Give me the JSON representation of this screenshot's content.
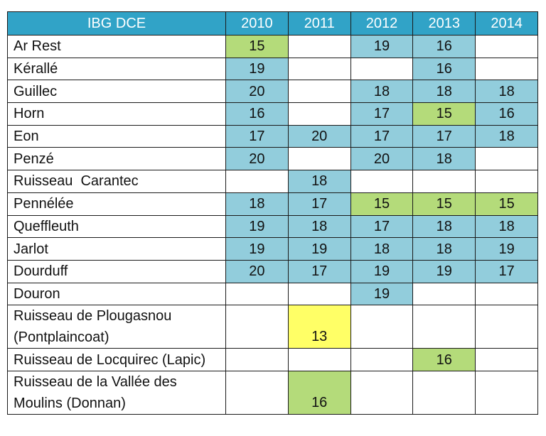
{
  "colors": {
    "header": "#31a3c7",
    "blue": "#92cddc",
    "green": "#b4db7a",
    "yellow": "#ffff66"
  },
  "table": {
    "header": [
      "IBG DCE",
      "2010",
      "2011",
      "2012",
      "2013",
      "2014"
    ],
    "rows": [
      {
        "name": "Ar Rest",
        "cells": [
          {
            "v": "15",
            "c": "green"
          },
          {
            "v": "",
            "c": "white"
          },
          {
            "v": "19",
            "c": "blue"
          },
          {
            "v": "16",
            "c": "blue"
          },
          {
            "v": "",
            "c": "white"
          }
        ]
      },
      {
        "name": "Kérallé",
        "cells": [
          {
            "v": "19",
            "c": "blue"
          },
          {
            "v": "",
            "c": "white"
          },
          {
            "v": "",
            "c": "white"
          },
          {
            "v": "16",
            "c": "blue"
          },
          {
            "v": "",
            "c": "white"
          }
        ]
      },
      {
        "name": "Guillec",
        "cells": [
          {
            "v": "20",
            "c": "blue"
          },
          {
            "v": "",
            "c": "white"
          },
          {
            "v": "18",
            "c": "blue"
          },
          {
            "v": "18",
            "c": "blue"
          },
          {
            "v": "18",
            "c": "blue"
          }
        ]
      },
      {
        "name": "Horn",
        "cells": [
          {
            "v": "16",
            "c": "blue"
          },
          {
            "v": "",
            "c": "white"
          },
          {
            "v": "17",
            "c": "blue"
          },
          {
            "v": "15",
            "c": "green"
          },
          {
            "v": "16",
            "c": "blue"
          }
        ]
      },
      {
        "name": "Eon",
        "cells": [
          {
            "v": "17",
            "c": "blue"
          },
          {
            "v": "20",
            "c": "blue"
          },
          {
            "v": "17",
            "c": "blue"
          },
          {
            "v": "17",
            "c": "blue"
          },
          {
            "v": "18",
            "c": "blue"
          }
        ]
      },
      {
        "name": "Penzé",
        "cells": [
          {
            "v": "20",
            "c": "blue"
          },
          {
            "v": "",
            "c": "white"
          },
          {
            "v": "20",
            "c": "blue"
          },
          {
            "v": "18",
            "c": "blue"
          },
          {
            "v": "",
            "c": "white"
          }
        ]
      },
      {
        "name": "Ruisseau  Carantec",
        "cells": [
          {
            "v": "",
            "c": "white"
          },
          {
            "v": "18",
            "c": "blue"
          },
          {
            "v": "",
            "c": "white"
          },
          {
            "v": "",
            "c": "white"
          },
          {
            "v": "",
            "c": "white"
          }
        ]
      },
      {
        "name": "Pennélée",
        "cells": [
          {
            "v": "18",
            "c": "blue"
          },
          {
            "v": "17",
            "c": "blue"
          },
          {
            "v": "15",
            "c": "green"
          },
          {
            "v": "15",
            "c": "green"
          },
          {
            "v": "15",
            "c": "green"
          }
        ]
      },
      {
        "name": "Queffleuth",
        "cells": [
          {
            "v": "19",
            "c": "blue"
          },
          {
            "v": "18",
            "c": "blue"
          },
          {
            "v": "17",
            "c": "blue"
          },
          {
            "v": "18",
            "c": "blue"
          },
          {
            "v": "18",
            "c": "blue"
          }
        ]
      },
      {
        "name": "Jarlot",
        "cells": [
          {
            "v": "19",
            "c": "blue"
          },
          {
            "v": "19",
            "c": "blue"
          },
          {
            "v": "18",
            "c": "blue"
          },
          {
            "v": "18",
            "c": "blue"
          },
          {
            "v": "19",
            "c": "blue"
          }
        ]
      },
      {
        "name": "Dourduff",
        "cells": [
          {
            "v": "20",
            "c": "blue"
          },
          {
            "v": "17",
            "c": "blue"
          },
          {
            "v": "19",
            "c": "blue"
          },
          {
            "v": "19",
            "c": "blue"
          },
          {
            "v": "17",
            "c": "blue"
          }
        ]
      },
      {
        "name": "Douron",
        "cells": [
          {
            "v": "",
            "c": "white"
          },
          {
            "v": "",
            "c": "white"
          },
          {
            "v": "19",
            "c": "blue"
          },
          {
            "v": "",
            "c": "white"
          },
          {
            "v": "",
            "c": "white"
          }
        ]
      },
      {
        "name": "Ruisseau de Plougasnou\n(Pontplaincoat)",
        "cells": [
          {
            "v": "",
            "c": "white"
          },
          {
            "v": "13",
            "c": "yellow"
          },
          {
            "v": "",
            "c": "white"
          },
          {
            "v": "",
            "c": "white"
          },
          {
            "v": "",
            "c": "white"
          }
        ]
      },
      {
        "name": "Ruisseau de Locquirec (Lapic)",
        "cells": [
          {
            "v": "",
            "c": "white"
          },
          {
            "v": "",
            "c": "white"
          },
          {
            "v": "",
            "c": "white"
          },
          {
            "v": "16",
            "c": "green"
          },
          {
            "v": "",
            "c": "white"
          }
        ]
      },
      {
        "name": "Ruisseau de la Vallée des\nMoulins (Donnan)",
        "cells": [
          {
            "v": "",
            "c": "white"
          },
          {
            "v": "16",
            "c": "green"
          },
          {
            "v": "",
            "c": "white"
          },
          {
            "v": "",
            "c": "white"
          },
          {
            "v": "",
            "c": "white"
          }
        ]
      }
    ]
  }
}
